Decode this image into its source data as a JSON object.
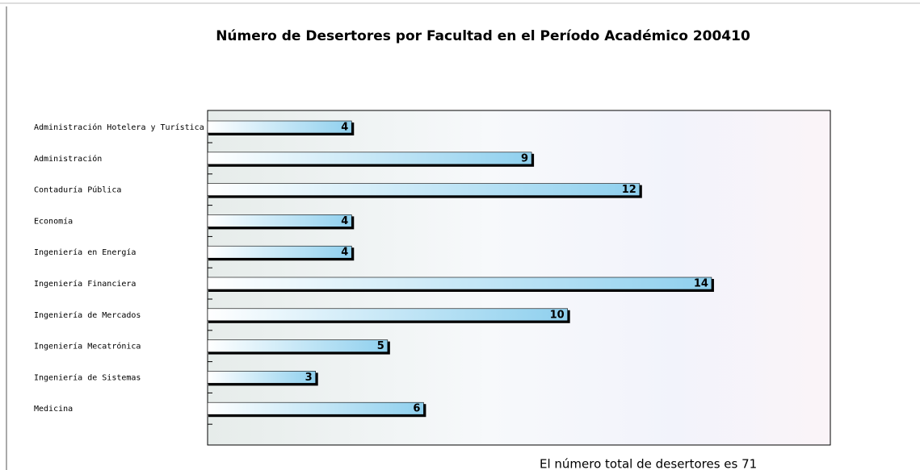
{
  "chart_data": {
    "type": "barh",
    "title": "Número de Desertores por Facultad en el Período Académico 200410",
    "categories": [
      "Administración Hotelera y Turística",
      "Administración",
      "Contaduría Pública",
      "Economía",
      "Ingeniería en Energía",
      "Ingeniería Financiera",
      "Ingeniería de Mercados",
      "Ingeniería Mecatrónica",
      "Ingeniería de Sistemas",
      "Medicina"
    ],
    "values": [
      4,
      9,
      12,
      4,
      4,
      14,
      10,
      5,
      3,
      6
    ],
    "color": "#8fd0ee",
    "xlim": [
      0,
      17.3
    ],
    "footer": "El número total de desertores es 71"
  }
}
